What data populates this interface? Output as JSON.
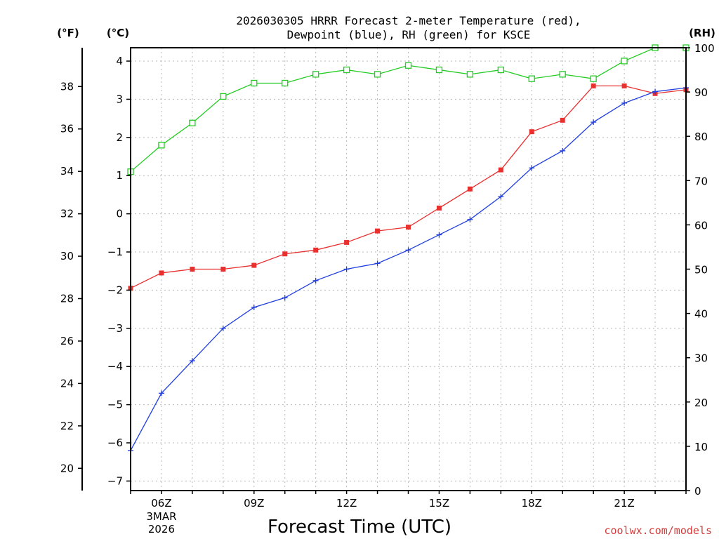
{
  "chart_data": {
    "type": "line",
    "title_line1": "2026030305 HRRR Forecast 2-meter Temperature (red),",
    "title_line2": "Dewpoint (blue), RH (green) for KSCE",
    "xlabel": "Forecast Time (UTC)",
    "credit": "coolwx.com/models",
    "unit_f": "(°F)",
    "unit_c": "(°C)",
    "unit_rh": "(RH)",
    "x_hours": [
      5,
      6,
      7,
      8,
      9,
      10,
      11,
      12,
      13,
      14,
      15,
      16,
      17,
      18,
      19,
      20,
      21,
      22,
      23
    ],
    "x_range": [
      5,
      23
    ],
    "c_range": [
      -7.25,
      4.35
    ],
    "rh_range": [
      0,
      100
    ],
    "f_range": [
      18.95,
      39.83
    ],
    "c_ticks": [
      -7,
      -6,
      -5,
      -4,
      -3,
      -2,
      -1,
      0,
      1,
      2,
      3,
      4
    ],
    "f_ticks": [
      20,
      22,
      24,
      26,
      28,
      30,
      32,
      34,
      36,
      38
    ],
    "rh_ticks": [
      0,
      10,
      20,
      30,
      40,
      50,
      60,
      70,
      80,
      90,
      100
    ],
    "x_ticks": [
      {
        "hour": 6,
        "label": "06Z",
        "sub1": "3MAR",
        "sub2": "2026"
      },
      {
        "hour": 9,
        "label": "09Z"
      },
      {
        "hour": 12,
        "label": "12Z"
      },
      {
        "hour": 15,
        "label": "15Z"
      },
      {
        "hour": 18,
        "label": "18Z"
      },
      {
        "hour": 21,
        "label": "21Z"
      }
    ],
    "grid": true,
    "series": [
      {
        "name": "Temperature",
        "unit": "C",
        "color": "#e8302f",
        "marker": "filled-square",
        "values": [
          -1.95,
          -1.55,
          -1.45,
          -1.45,
          -1.35,
          -1.05,
          -0.95,
          -0.75,
          -0.45,
          -0.35,
          0.15,
          0.65,
          1.15,
          2.15,
          2.45,
          3.35,
          3.35,
          3.15,
          3.25
        ]
      },
      {
        "name": "Dewpoint",
        "unit": "C",
        "color": "#1f3ee0",
        "marker": "plus",
        "values": [
          -6.2,
          -4.7,
          -3.85,
          -3.0,
          -2.45,
          -2.2,
          -1.75,
          -1.45,
          -1.3,
          -0.95,
          -0.55,
          -0.15,
          0.45,
          1.2,
          1.65,
          2.4,
          2.9,
          3.2,
          3.3
        ]
      },
      {
        "name": "RH",
        "unit": "%",
        "color": "#22cc22",
        "marker": "open-square",
        "values": [
          72,
          78,
          83,
          89,
          92,
          92,
          94,
          95,
          94,
          96,
          95,
          94,
          95,
          93,
          94,
          93,
          97,
          100,
          100
        ]
      }
    ]
  }
}
